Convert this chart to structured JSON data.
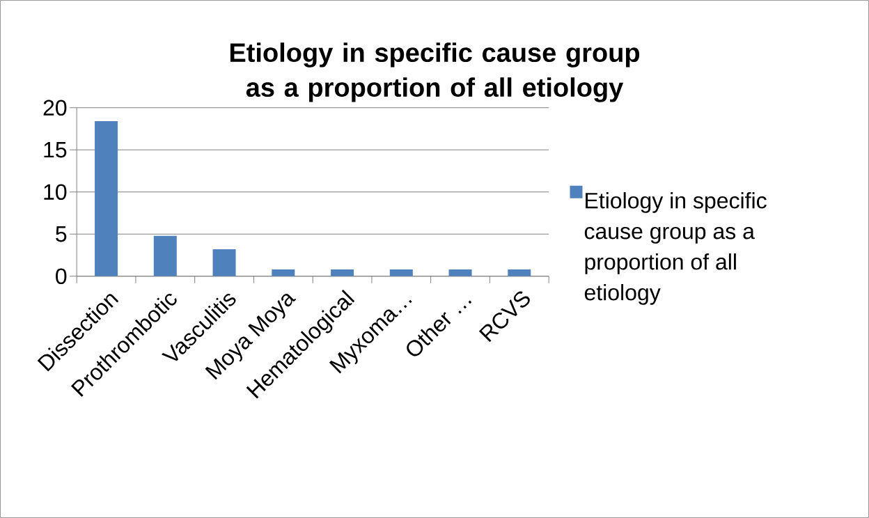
{
  "chart_data": {
    "type": "bar",
    "title": "Etiology in specific cause group as a proportion of all etiology",
    "categories": [
      "Dissection",
      "Prothrombotic",
      "Vasculitis",
      "Moya Moya",
      "Hematological",
      "Myxoma…",
      "Other …",
      "RCVS"
    ],
    "series": [
      {
        "name": "Etiology in specific cause group as a proportion of all etiology",
        "color": "#4f81bd",
        "values": [
          18.4,
          4.8,
          3.2,
          0.8,
          0.8,
          0.8,
          0.8,
          0.8
        ]
      }
    ],
    "ylim": [
      0,
      20
    ],
    "yticks": [
      0,
      5,
      10,
      15,
      20
    ],
    "grid": "y",
    "legend": "right"
  }
}
